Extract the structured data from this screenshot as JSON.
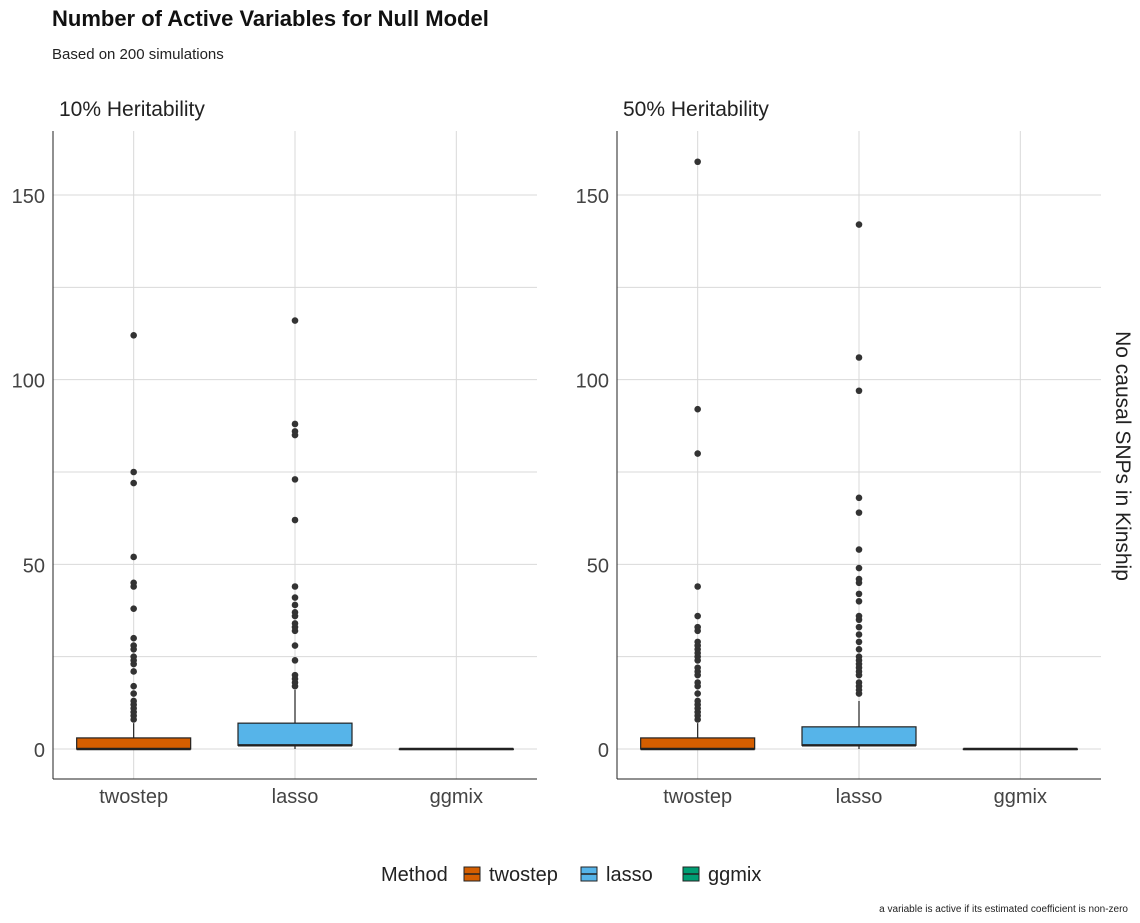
{
  "title": "Number of Active Variables for Null Model",
  "subtitle": "Based on 200 simulations",
  "caption": "a variable is active if its estimated coefficient is non-zero",
  "facet_strip_right": "No causal SNPs in Kinship",
  "legend": {
    "title": "Method",
    "items": [
      {
        "label": "twostep",
        "color": "#D55E00"
      },
      {
        "label": "lasso",
        "color": "#56B4E9"
      },
      {
        "label": "ggmix",
        "color": "#009E73"
      }
    ]
  },
  "chart_data": [
    {
      "type": "box",
      "title": "10% Heritability",
      "categories": [
        "twostep",
        "lasso",
        "ggmix"
      ],
      "ylim": [
        -8,
        165
      ],
      "yticks": [
        0,
        50,
        100,
        150
      ],
      "grid": true,
      "boxes": [
        {
          "name": "twostep",
          "color": "#D55E00",
          "min": 0,
          "q1": 0,
          "median": 0,
          "q3": 3,
          "max": 7,
          "outliers": [
            8,
            9,
            10,
            11,
            12,
            13,
            15,
            17,
            21,
            23,
            24,
            25,
            27,
            28,
            30,
            38,
            44,
            45,
            52,
            72,
            75,
            112
          ]
        },
        {
          "name": "lasso",
          "color": "#56B4E9",
          "min": 0,
          "q1": 1,
          "median": 1,
          "q3": 7,
          "max": 16,
          "outliers": [
            17,
            18,
            19,
            20,
            24,
            28,
            32,
            33,
            34,
            36,
            37,
            39,
            41,
            44,
            62,
            73,
            85,
            86,
            88,
            116
          ]
        },
        {
          "name": "ggmix",
          "color": "#009E73",
          "min": 0,
          "q1": 0,
          "median": 0,
          "q3": 0,
          "max": 0,
          "outliers": []
        }
      ]
    },
    {
      "type": "box",
      "title": "50% Heritability",
      "categories": [
        "twostep",
        "lasso",
        "ggmix"
      ],
      "ylim": [
        -8,
        165
      ],
      "yticks": [
        0,
        50,
        100,
        150
      ],
      "grid": true,
      "boxes": [
        {
          "name": "twostep",
          "color": "#D55E00",
          "min": 0,
          "q1": 0,
          "median": 0,
          "q3": 3,
          "max": 7,
          "outliers": [
            8,
            9,
            10,
            11,
            12,
            13,
            15,
            17,
            18,
            20,
            21,
            22,
            24,
            25,
            26,
            27,
            28,
            29,
            32,
            33,
            36,
            44,
            80,
            92,
            159
          ]
        },
        {
          "name": "lasso",
          "color": "#56B4E9",
          "min": 0,
          "q1": 1,
          "median": 1,
          "q3": 6,
          "max": 13,
          "outliers": [
            15,
            16,
            17,
            18,
            20,
            21,
            22,
            23,
            24,
            25,
            27,
            29,
            31,
            33,
            35,
            36,
            40,
            42,
            45,
            46,
            49,
            54,
            64,
            68,
            97,
            106,
            142
          ]
        },
        {
          "name": "ggmix",
          "color": "#009E73",
          "min": 0,
          "q1": 0,
          "median": 0,
          "q3": 0,
          "max": 0,
          "outliers": []
        }
      ]
    }
  ]
}
